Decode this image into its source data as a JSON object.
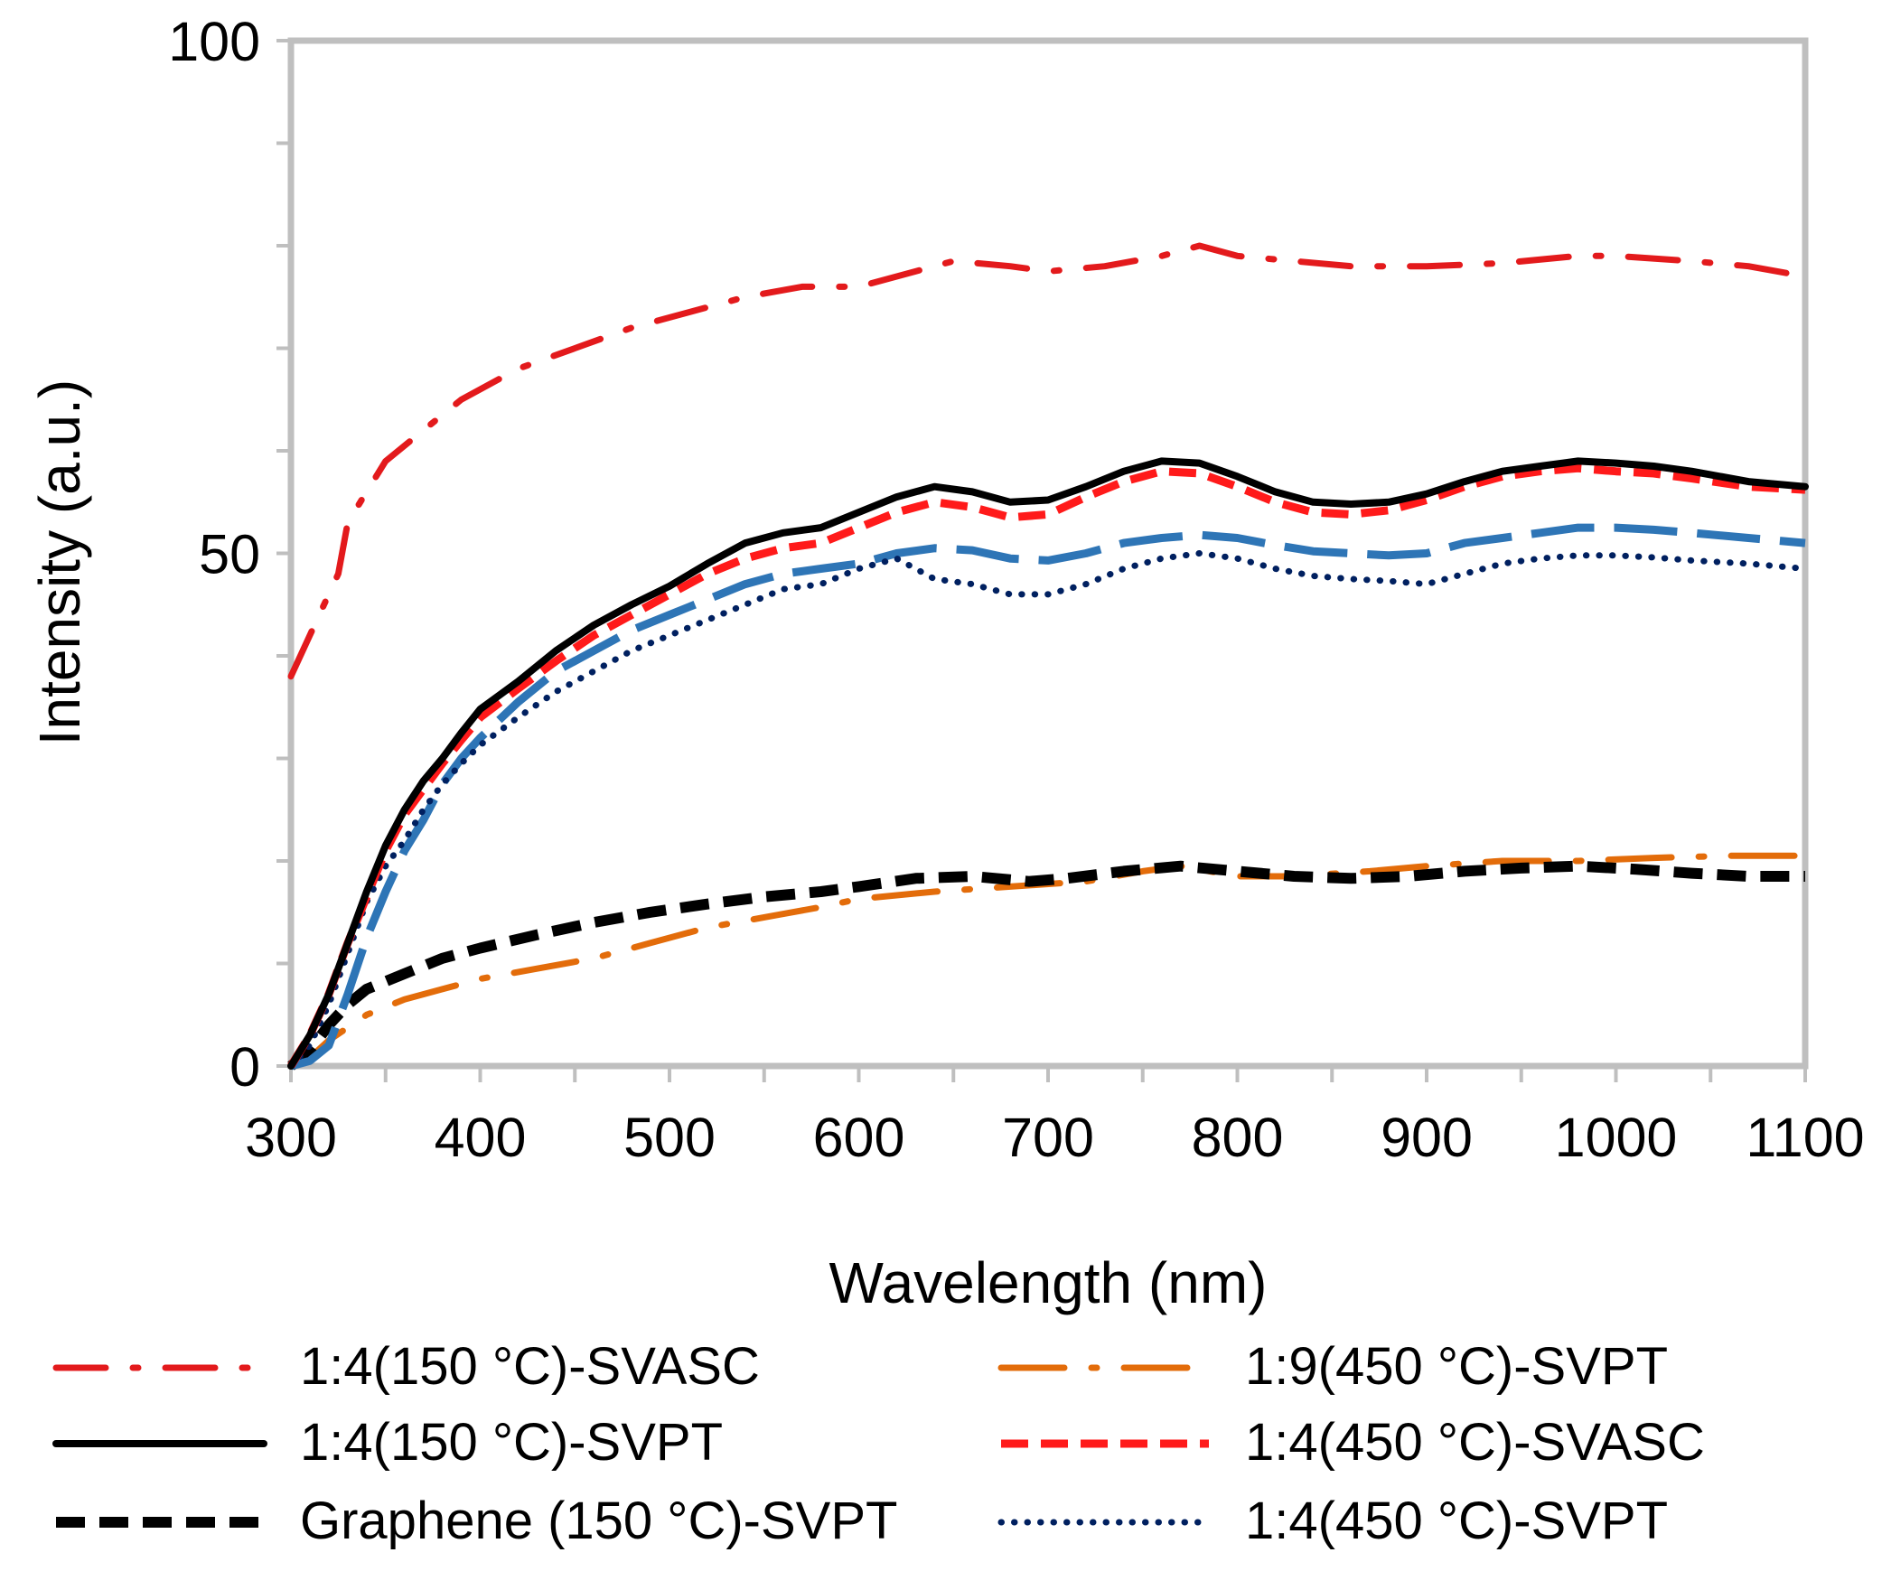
{
  "chart_data": {
    "type": "line",
    "title": "",
    "xlabel": "Wavelength (nm)",
    "ylabel": "Intensity (a.u.)",
    "xlim": [
      300,
      1100
    ],
    "ylim": [
      0,
      100
    ],
    "x_ticks": [
      300,
      400,
      500,
      600,
      700,
      800,
      900,
      1000,
      1100
    ],
    "y_ticks": [
      0,
      50,
      100
    ],
    "y_minor_step": 10,
    "x_minor_step": 50,
    "grid": false,
    "legend_position": "bottom",
    "series": [
      {
        "name": "1:4(150 °C)-SVASC",
        "color": "#e31a1c",
        "style": "dashdot",
        "points": [
          [
            300,
            38
          ],
          [
            310,
            42
          ],
          [
            320,
            46
          ],
          [
            325,
            48
          ],
          [
            330,
            53
          ],
          [
            340,
            56
          ],
          [
            350,
            59
          ],
          [
            370,
            62
          ],
          [
            390,
            65
          ],
          [
            420,
            68
          ],
          [
            450,
            70
          ],
          [
            480,
            72
          ],
          [
            510,
            73.5
          ],
          [
            540,
            75
          ],
          [
            570,
            76
          ],
          [
            600,
            76
          ],
          [
            630,
            77.5
          ],
          [
            650,
            78.5
          ],
          [
            680,
            78
          ],
          [
            700,
            77.5
          ],
          [
            730,
            78
          ],
          [
            760,
            79
          ],
          [
            780,
            80
          ],
          [
            800,
            79
          ],
          [
            830,
            78.5
          ],
          [
            860,
            78
          ],
          [
            900,
            78
          ],
          [
            940,
            78.3
          ],
          [
            980,
            79
          ],
          [
            1000,
            79
          ],
          [
            1040,
            78.5
          ],
          [
            1070,
            78
          ],
          [
            1100,
            77
          ]
        ]
      },
      {
        "name": "1:9(450 °C)-SVPT",
        "color": "#e36c0a",
        "style": "longdashdot",
        "points": [
          [
            300,
            0
          ],
          [
            310,
            0.8
          ],
          [
            320,
            2.5
          ],
          [
            340,
            5
          ],
          [
            360,
            6.5
          ],
          [
            380,
            7.5
          ],
          [
            400,
            8.5
          ],
          [
            430,
            9.5
          ],
          [
            460,
            10.5
          ],
          [
            490,
            12
          ],
          [
            520,
            13.5
          ],
          [
            550,
            14.5
          ],
          [
            580,
            15.5
          ],
          [
            600,
            16.3
          ],
          [
            640,
            17
          ],
          [
            680,
            17.5
          ],
          [
            720,
            18
          ],
          [
            750,
            19
          ],
          [
            770,
            19.5
          ],
          [
            800,
            18.5
          ],
          [
            830,
            18.5
          ],
          [
            870,
            19
          ],
          [
            900,
            19.5
          ],
          [
            940,
            20
          ],
          [
            980,
            20
          ],
          [
            1020,
            20.3
          ],
          [
            1060,
            20.5
          ],
          [
            1100,
            20.5
          ]
        ]
      },
      {
        "name": "1:4(150 °C)-SVPT",
        "color": "#000000",
        "style": "solid",
        "points": [
          [
            300,
            0
          ],
          [
            310,
            3
          ],
          [
            320,
            7
          ],
          [
            330,
            12
          ],
          [
            340,
            17
          ],
          [
            350,
            21.5
          ],
          [
            360,
            25
          ],
          [
            370,
            27.8
          ],
          [
            380,
            30
          ],
          [
            390,
            32.5
          ],
          [
            400,
            34.8
          ],
          [
            420,
            37.5
          ],
          [
            440,
            40.5
          ],
          [
            460,
            43
          ],
          [
            480,
            45
          ],
          [
            500,
            46.8
          ],
          [
            520,
            49
          ],
          [
            540,
            51
          ],
          [
            560,
            52
          ],
          [
            580,
            52.5
          ],
          [
            600,
            54
          ],
          [
            620,
            55.5
          ],
          [
            640,
            56.5
          ],
          [
            660,
            56
          ],
          [
            680,
            55
          ],
          [
            700,
            55.2
          ],
          [
            720,
            56.5
          ],
          [
            740,
            58
          ],
          [
            760,
            59
          ],
          [
            780,
            58.8
          ],
          [
            800,
            57.5
          ],
          [
            820,
            56
          ],
          [
            840,
            55
          ],
          [
            860,
            54.8
          ],
          [
            880,
            55
          ],
          [
            900,
            55.8
          ],
          [
            920,
            57
          ],
          [
            940,
            58
          ],
          [
            960,
            58.5
          ],
          [
            980,
            59
          ],
          [
            1000,
            58.8
          ],
          [
            1020,
            58.5
          ],
          [
            1040,
            58
          ],
          [
            1070,
            57
          ],
          [
            1100,
            56.5
          ]
        ]
      },
      {
        "name": "1:4(450 °C)-SVASC",
        "color": "#ff1a1a",
        "style": "dashed",
        "points": [
          [
            300,
            0
          ],
          [
            310,
            3
          ],
          [
            320,
            7
          ],
          [
            330,
            12
          ],
          [
            340,
            16.5
          ],
          [
            350,
            21
          ],
          [
            360,
            24.5
          ],
          [
            370,
            27
          ],
          [
            380,
            29.5
          ],
          [
            390,
            31.8
          ],
          [
            400,
            34
          ],
          [
            420,
            36.8
          ],
          [
            440,
            39.5
          ],
          [
            460,
            42
          ],
          [
            480,
            44
          ],
          [
            500,
            46
          ],
          [
            520,
            48
          ],
          [
            540,
            49.5
          ],
          [
            560,
            50.5
          ],
          [
            580,
            51
          ],
          [
            600,
            52.5
          ],
          [
            620,
            54
          ],
          [
            640,
            55
          ],
          [
            660,
            54.5
          ],
          [
            680,
            53.5
          ],
          [
            700,
            53.8
          ],
          [
            720,
            55.5
          ],
          [
            740,
            57
          ],
          [
            760,
            58
          ],
          [
            780,
            57.8
          ],
          [
            800,
            56.5
          ],
          [
            820,
            55
          ],
          [
            840,
            54
          ],
          [
            860,
            53.8
          ],
          [
            880,
            54.2
          ],
          [
            900,
            55.2
          ],
          [
            920,
            56.5
          ],
          [
            940,
            57.5
          ],
          [
            960,
            58
          ],
          [
            980,
            58.3
          ],
          [
            1000,
            58
          ],
          [
            1020,
            57.8
          ],
          [
            1040,
            57.3
          ],
          [
            1070,
            56.5
          ],
          [
            1100,
            56.2
          ]
        ]
      },
      {
        "name": "Graphene (150 °C)-SVPT",
        "color": "#000000",
        "style": "heavydash",
        "points": [
          [
            300,
            0
          ],
          [
            310,
            1.5
          ],
          [
            320,
            4
          ],
          [
            330,
            6
          ],
          [
            340,
            7.5
          ],
          [
            360,
            9
          ],
          [
            380,
            10.5
          ],
          [
            400,
            11.5
          ],
          [
            430,
            12.8
          ],
          [
            460,
            14
          ],
          [
            490,
            15
          ],
          [
            520,
            15.8
          ],
          [
            550,
            16.5
          ],
          [
            580,
            17
          ],
          [
            600,
            17.5
          ],
          [
            630,
            18.3
          ],
          [
            660,
            18.5
          ],
          [
            690,
            18
          ],
          [
            710,
            18.3
          ],
          [
            740,
            19
          ],
          [
            770,
            19.5
          ],
          [
            800,
            19
          ],
          [
            830,
            18.5
          ],
          [
            860,
            18.3
          ],
          [
            890,
            18.5
          ],
          [
            920,
            19
          ],
          [
            950,
            19.3
          ],
          [
            980,
            19.5
          ],
          [
            1010,
            19.2
          ],
          [
            1040,
            18.8
          ],
          [
            1070,
            18.5
          ],
          [
            1100,
            18.5
          ]
        ]
      },
      {
        "name": "1:4(450 °C)-SVPT",
        "color": "#002060",
        "style": "dotted",
        "points": [
          [
            300,
            0
          ],
          [
            310,
            2
          ],
          [
            320,
            6
          ],
          [
            330,
            11
          ],
          [
            340,
            16
          ],
          [
            350,
            19.5
          ],
          [
            360,
            22
          ],
          [
            370,
            25
          ],
          [
            380,
            27.5
          ],
          [
            390,
            29.5
          ],
          [
            400,
            31.3
          ],
          [
            420,
            34
          ],
          [
            440,
            36.5
          ],
          [
            460,
            38.5
          ],
          [
            480,
            40.5
          ],
          [
            500,
            42
          ],
          [
            520,
            43.5
          ],
          [
            540,
            45
          ],
          [
            560,
            46.5
          ],
          [
            580,
            47
          ],
          [
            600,
            48.5
          ],
          [
            620,
            49.5
          ],
          [
            640,
            47.5
          ],
          [
            660,
            47
          ],
          [
            680,
            46
          ],
          [
            700,
            46
          ],
          [
            720,
            47
          ],
          [
            740,
            48.5
          ],
          [
            760,
            49.5
          ],
          [
            780,
            50
          ],
          [
            800,
            49.5
          ],
          [
            820,
            48.5
          ],
          [
            840,
            47.8
          ],
          [
            860,
            47.5
          ],
          [
            880,
            47.3
          ],
          [
            900,
            47
          ],
          [
            920,
            48
          ],
          [
            940,
            49
          ],
          [
            960,
            49.5
          ],
          [
            980,
            49.8
          ],
          [
            1000,
            49.8
          ],
          [
            1020,
            49.6
          ],
          [
            1040,
            49.3
          ],
          [
            1070,
            49
          ],
          [
            1100,
            48.5
          ]
        ]
      },
      {
        "name": "Blue dashed (unlabeled)",
        "color": "#2e75b6",
        "style": "longdash",
        "hidden_in_legend": true,
        "points": [
          [
            300,
            0
          ],
          [
            310,
            0.5
          ],
          [
            320,
            2
          ],
          [
            330,
            7
          ],
          [
            340,
            12.5
          ],
          [
            350,
            17
          ],
          [
            360,
            21
          ],
          [
            370,
            24
          ],
          [
            380,
            27.5
          ],
          [
            390,
            30
          ],
          [
            400,
            32
          ],
          [
            420,
            35.5
          ],
          [
            440,
            38.5
          ],
          [
            460,
            40.5
          ],
          [
            480,
            42.5
          ],
          [
            500,
            44
          ],
          [
            520,
            45.5
          ],
          [
            540,
            47
          ],
          [
            560,
            48
          ],
          [
            580,
            48.5
          ],
          [
            600,
            49
          ],
          [
            620,
            50
          ],
          [
            640,
            50.5
          ],
          [
            660,
            50.3
          ],
          [
            680,
            49.5
          ],
          [
            700,
            49.3
          ],
          [
            720,
            50
          ],
          [
            740,
            51
          ],
          [
            760,
            51.5
          ],
          [
            780,
            51.8
          ],
          [
            800,
            51.5
          ],
          [
            820,
            50.8
          ],
          [
            840,
            50.2
          ],
          [
            860,
            50
          ],
          [
            880,
            49.8
          ],
          [
            900,
            50
          ],
          [
            920,
            51
          ],
          [
            940,
            51.5
          ],
          [
            960,
            52
          ],
          [
            980,
            52.5
          ],
          [
            1000,
            52.5
          ],
          [
            1020,
            52.3
          ],
          [
            1040,
            52
          ],
          [
            1070,
            51.5
          ],
          [
            1100,
            51
          ]
        ]
      }
    ],
    "legend": [
      {
        "label": "1:4(150 °C)-SVASC",
        "series": 0
      },
      {
        "label": "1:9(450 °C)-SVPT",
        "series": 1
      },
      {
        "label": "1:4(150 °C)-SVPT",
        "series": 2
      },
      {
        "label": "1:4(450 °C)-SVASC",
        "series": 3
      },
      {
        "label": "Graphene (150 °C)-SVPT",
        "series": 4
      },
      {
        "label": "1:4(450 °C)-SVPT",
        "series": 5
      }
    ]
  }
}
